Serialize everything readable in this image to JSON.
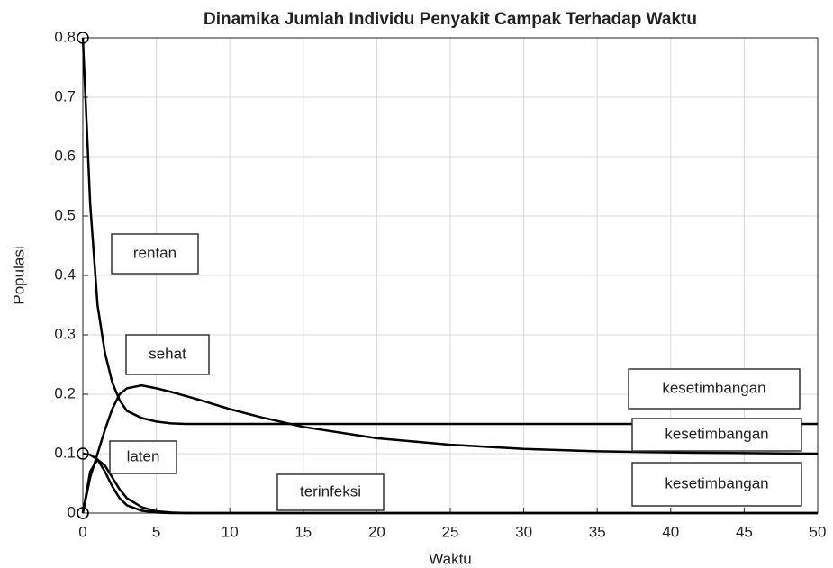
{
  "chart_data": {
    "type": "line",
    "title": "Dinamika Jumlah Individu Penyakit Campak Terhadap Waktu",
    "xlabel": "Waktu",
    "ylabel": "Populasi",
    "x": [
      0,
      0.5,
      1,
      1.5,
      2,
      2.5,
      3,
      4,
      5,
      6,
      7,
      8,
      10,
      12,
      15,
      20,
      25,
      30,
      35,
      40,
      45,
      50
    ],
    "series": [
      {
        "name": "rentan",
        "color": "#000000",
        "values": [
          0.8,
          0.52,
          0.35,
          0.27,
          0.22,
          0.19,
          0.172,
          0.16,
          0.154,
          0.151,
          0.15,
          0.15,
          0.15,
          0.15,
          0.15,
          0.15,
          0.15,
          0.15,
          0.15,
          0.15,
          0.15,
          0.15
        ]
      },
      {
        "name": "sehat",
        "color": "#000000",
        "values": [
          0,
          0.06,
          0.1,
          0.14,
          0.175,
          0.2,
          0.21,
          0.215,
          0.21,
          0.204,
          0.197,
          0.19,
          0.175,
          0.162,
          0.145,
          0.126,
          0.115,
          0.108,
          0.104,
          0.102,
          0.101,
          0.1
        ]
      },
      {
        "name": "laten",
        "color": "#000000",
        "values": [
          0.1,
          0.098,
          0.09,
          0.07,
          0.045,
          0.025,
          0.013,
          0.004,
          0.001,
          0,
          0,
          0,
          0,
          0,
          0,
          0,
          0,
          0,
          0,
          0,
          0,
          0
        ]
      },
      {
        "name": "terinfeksi",
        "color": "#000000",
        "values": [
          0,
          0.07,
          0.09,
          0.08,
          0.06,
          0.04,
          0.025,
          0.01,
          0.003,
          0.001,
          0,
          0,
          0,
          0,
          0,
          0,
          0,
          0,
          0,
          0,
          0,
          0
        ]
      }
    ],
    "annotations": [
      "rentan",
      "sehat",
      "laten",
      "terinfeksi",
      "kesetimbangan",
      "kesetimbangan",
      "kesetimbangan"
    ],
    "xlim": [
      0,
      50
    ],
    "xticks": [
      0,
      5,
      10,
      15,
      20,
      25,
      30,
      35,
      40,
      45,
      50
    ],
    "ylim": [
      0,
      0.8
    ],
    "yticks": [
      0,
      0.1,
      0.2,
      0.3,
      0.4,
      0.5,
      0.6,
      0.7,
      0.8
    ],
    "grid": true
  }
}
